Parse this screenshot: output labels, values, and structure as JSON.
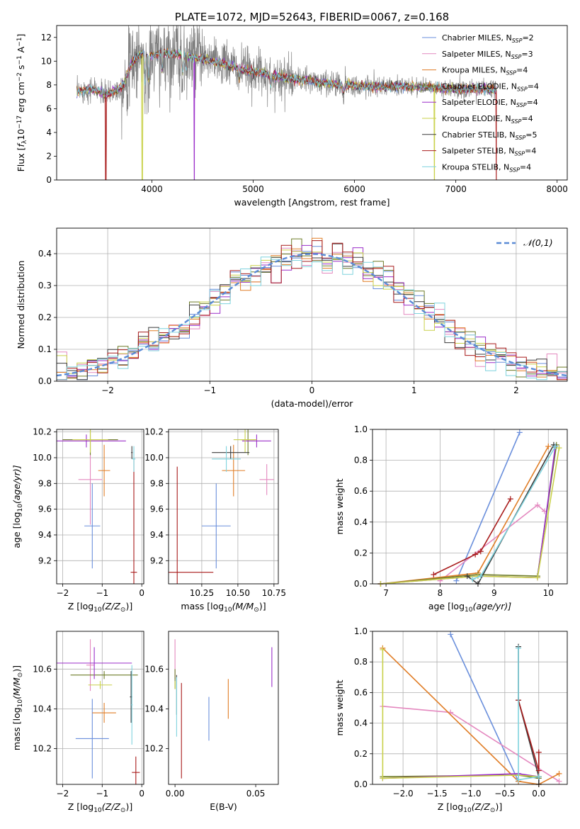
{
  "colors": {
    "Chabrier MILES": "#6a8fdc",
    "Salpeter MILES": "#e488bf",
    "Kroupa MILES": "#e07d26",
    "Chabrier ELODIE": "#6e7c28",
    "Salpeter ELODIE": "#9b2fc9",
    "Kroupa ELODIE": "#c9d14a",
    "Chabrier STELIB": "#3b3b3b",
    "Salpeter STELIB": "#a81b1b",
    "Kroupa STELIB": "#7fd3de",
    "data": "#7f7f7f",
    "gauss": "#5b8bd6"
  },
  "chart_data": [
    {
      "id": "spectrum",
      "type": "line",
      "title": "PLATE=1072, MJD=52643, FIBERID=0067, z=0.168",
      "xlabel": "wavelength [Angstrom, rest frame]",
      "ylabel_parts": [
        "Flux [",
        "f",
        "λ",
        "10",
        "−17",
        " erg cm",
        "−2",
        " s",
        "−1",
        " A",
        "−1",
        "]"
      ],
      "xlim": [
        3060,
        8100
      ],
      "ylim": [
        0,
        13
      ],
      "xticks": [
        4000,
        5000,
        6000,
        7000,
        8000
      ],
      "yticks": [
        0,
        2,
        4,
        6,
        8,
        10,
        12
      ],
      "legend_position": "top-right",
      "legend": [
        {
          "model": "Chabrier MILES",
          "n": 2
        },
        {
          "model": "Salpeter MILES",
          "n": 3
        },
        {
          "model": "Kroupa MILES",
          "n": 4
        },
        {
          "model": "Chabrier ELODIE",
          "n": 4
        },
        {
          "model": "Salpeter ELODIE",
          "n": 4
        },
        {
          "model": "Kroupa ELODIE",
          "n": 4
        },
        {
          "model": "Chabrier STELIB",
          "n": 5
        },
        {
          "model": "Salpeter STELIB",
          "n": 4
        },
        {
          "model": "Kroupa STELIB",
          "n": 4
        }
      ],
      "legend_n_text": {
        "prefix": "N",
        "sub": "SSP",
        "eq": "="
      },
      "continuum": {
        "x": [
          3260,
          3400,
          3550,
          3700,
          3800,
          3850,
          3900,
          4000,
          4100,
          4300,
          4500,
          4700,
          4900,
          5100,
          5300,
          5500,
          5700,
          5900,
          6100,
          6300,
          6500,
          6700,
          6900,
          7100,
          7300,
          7400
        ],
        "y": [
          7.4,
          7.7,
          7.2,
          7.8,
          9.8,
          10.3,
          10.6,
          10.5,
          10.7,
          10.5,
          10.2,
          9.8,
          9.3,
          9.0,
          8.6,
          8.4,
          8.2,
          8.0,
          7.9,
          7.8,
          7.9,
          7.8,
          7.7,
          7.6,
          7.7,
          7.5
        ]
      },
      "noise_sigma": [
        {
          "x": [
            3260,
            3700
          ],
          "s": 0.5
        },
        {
          "x": [
            3700,
            4500
          ],
          "s": 1.6
        },
        {
          "x": [
            4500,
            5400
          ],
          "s": 0.9
        },
        {
          "x": [
            5400,
            6300
          ],
          "s": 0.5
        },
        {
          "x": [
            6300,
            7000
          ],
          "s": 0.35
        },
        {
          "x": [
            7000,
            7400
          ],
          "s": 0.45
        }
      ],
      "absorption_lines": [
        {
          "x": 3934,
          "depth": 3.5
        },
        {
          "x": 3969,
          "depth": 3.0
        },
        {
          "x": 4101,
          "depth": 2.2
        },
        {
          "x": 4305,
          "depth": 2.0
        },
        {
          "x": 4341,
          "depth": 1.6
        },
        {
          "x": 4861,
          "depth": 1.2
        },
        {
          "x": 5175,
          "depth": 1.3
        },
        {
          "x": 5893,
          "depth": 1.0
        }
      ],
      "model_drops": [
        {
          "model": "Salpeter STELIB",
          "x": 3545
        },
        {
          "model": "Kroupa ELODIE",
          "x": 3905
        },
        {
          "model": "Salpeter ELODIE",
          "x": 4420
        },
        {
          "model": "Kroupa ELODIE",
          "x": 6790
        },
        {
          "model": "Salpeter STELIB",
          "x": 7400
        }
      ]
    },
    {
      "id": "residuals",
      "type": "histogram",
      "xlabel": "(data-model)/error",
      "ylabel": "Normed distribution",
      "xlim": [
        -2.5,
        2.5
      ],
      "ylim": [
        0,
        0.48
      ],
      "xticks": [
        -2,
        -1,
        0,
        1,
        2
      ],
      "yticks": [
        0.0,
        0.1,
        0.2,
        0.3,
        0.4
      ],
      "legend": "𝒩(0,1)",
      "legend_position": "top-right",
      "bin_width": 0.1,
      "bin_start": -2.5
    },
    {
      "id": "age_vs_Z",
      "type": "errorbar",
      "xlabel_parts": [
        "Z [log",
        "10",
        "(Z/Z",
        "⊙",
        ")]"
      ],
      "ylabel_parts": [
        "age  [log",
        "10",
        "(age/yr)]"
      ],
      "xlim": [
        -2.15,
        0.05
      ],
      "ylim": [
        9.02,
        10.22
      ],
      "xticks": [
        -2,
        -1,
        0
      ],
      "yticks": [
        9.2,
        9.4,
        9.6,
        9.8,
        10.0,
        10.2
      ],
      "points": [
        {
          "model": "Chabrier MILES",
          "x": -1.25,
          "xerr": 0.2,
          "y": 9.47,
          "yerr": 0.33
        },
        {
          "model": "Salpeter MILES",
          "x": -1.3,
          "xerr": 0.3,
          "y": 9.83,
          "yerr": 0.35
        },
        {
          "model": "Kroupa MILES",
          "x": -0.95,
          "xerr": 0.15,
          "y": 9.9,
          "yerr": 0.2
        },
        {
          "model": "Chabrier ELODIE",
          "x": -1.3,
          "xerr": 0.7,
          "y": 10.14,
          "yerr": 0.12
        },
        {
          "model": "Salpeter ELODIE",
          "x": -1.4,
          "xerr": 1.0,
          "y": 10.13,
          "yerr": 0.05
        },
        {
          "model": "Kroupa ELODIE",
          "x": -1.3,
          "xerr": 0.45,
          "y": 10.14,
          "yerr": 0.1
        },
        {
          "model": "Chabrier STELIB",
          "x": -0.25,
          "xerr": 0.02,
          "y": 10.04,
          "yerr": 0.05
        },
        {
          "model": "Salpeter STELIB",
          "x": -0.2,
          "xerr": 0.08,
          "y": 9.11,
          "yerr": 0.88
        },
        {
          "model": "Kroupa STELIB",
          "x": -0.2,
          "xerr": 0.04,
          "y": 9.99,
          "yerr": 0.1
        }
      ]
    },
    {
      "id": "age_vs_mass",
      "type": "errorbar",
      "xlabel_parts": [
        "mass [log",
        "10",
        "(M/M",
        "⊙",
        ")]"
      ],
      "ylabel": "",
      "xlim": [
        10.02,
        10.78
      ],
      "ylim": [
        9.02,
        10.22
      ],
      "xticks": [
        10.25,
        10.5,
        10.75
      ],
      "xtick_labels": [
        "10.25",
        "10.50",
        "10.75"
      ],
      "yticks": [
        9.2,
        9.4,
        9.6,
        9.8,
        10.0,
        10.2
      ],
      "points": [
        {
          "model": "Chabrier MILES",
          "x": 10.35,
          "xerr": 0.1,
          "y": 9.47,
          "yerr": 0.33
        },
        {
          "model": "Salpeter MILES",
          "x": 10.7,
          "xerr": 0.05,
          "y": 9.83,
          "yerr": 0.12
        },
        {
          "model": "Kroupa MILES",
          "x": 10.47,
          "xerr": 0.08,
          "y": 9.9,
          "yerr": 0.2
        },
        {
          "model": "Chabrier ELODIE",
          "x": 10.57,
          "xerr": 0.05,
          "y": 10.14,
          "yerr": 0.12
        },
        {
          "model": "Salpeter ELODIE",
          "x": 10.63,
          "xerr": 0.1,
          "y": 10.13,
          "yerr": 0.05
        },
        {
          "model": "Kroupa ELODIE",
          "x": 10.55,
          "xerr": 0.08,
          "y": 10.14,
          "yerr": 0.1
        },
        {
          "model": "Chabrier STELIB",
          "x": 10.45,
          "xerr": 0.13,
          "y": 10.04,
          "yerr": 0.05
        },
        {
          "model": "Salpeter STELIB",
          "x": 10.08,
          "xerr": 0.25,
          "y": 9.11,
          "yerr": 0.82
        },
        {
          "model": "Kroupa STELIB",
          "x": 10.42,
          "xerr": 0.1,
          "y": 9.99,
          "yerr": 0.1
        }
      ]
    },
    {
      "id": "mw_vs_age",
      "type": "line",
      "xlabel_parts": [
        "age  [log",
        "10",
        "(age/yr)]"
      ],
      "ylabel": "mass weight",
      "xlim": [
        6.75,
        10.35
      ],
      "ylim": [
        0,
        1.0
      ],
      "xticks": [
        7,
        8,
        9,
        10
      ],
      "yticks": [
        0.0,
        0.2,
        0.4,
        0.6,
        0.8,
        1.0
      ],
      "series": [
        {
          "model": "Chabrier MILES",
          "x": [
            8.3,
            9.47
          ],
          "y": [
            0.02,
            0.98
          ]
        },
        {
          "model": "Salpeter MILES",
          "x": [
            8.0,
            9.8,
            9.93
          ],
          "y": [
            0.02,
            0.51,
            0.47
          ]
        },
        {
          "model": "Kroupa MILES",
          "x": [
            6.9,
            8.7,
            10.0
          ],
          "y": [
            0.0,
            0.07,
            0.89
          ]
        },
        {
          "model": "Chabrier ELODIE",
          "x": [
            6.9,
            8.7,
            9.8,
            10.15
          ],
          "y": [
            0.0,
            0.06,
            0.05,
            0.9
          ]
        },
        {
          "model": "Salpeter ELODIE",
          "x": [
            6.9,
            8.7,
            9.8,
            10.13
          ],
          "y": [
            0.0,
            0.05,
            0.04,
            0.89
          ]
        },
        {
          "model": "Kroupa ELODIE",
          "x": [
            6.9,
            8.7,
            9.8,
            10.2
          ],
          "y": [
            0.0,
            0.05,
            0.04,
            0.88
          ]
        },
        {
          "model": "Chabrier STELIB",
          "x": [
            8.5,
            8.7,
            10.1
          ],
          "y": [
            0.05,
            0.0,
            0.9
          ]
        },
        {
          "model": "Salpeter STELIB",
          "x": [
            7.88,
            8.65,
            8.75,
            9.3
          ],
          "y": [
            0.06,
            0.19,
            0.21,
            0.55
          ]
        },
        {
          "model": "Kroupa STELIB",
          "x": [
            8.6,
            8.75,
            10.13
          ],
          "y": [
            0.03,
            0.05,
            0.89
          ]
        }
      ]
    },
    {
      "id": "mass_vs_Z",
      "type": "errorbar",
      "xlabel_parts": [
        "Z [log",
        "10",
        "(Z/Z",
        "⊙",
        ")]"
      ],
      "ylabel_parts": [
        "mass [log",
        "10",
        "(M/M",
        "⊙",
        ")]"
      ],
      "xlim": [
        -2.15,
        0.05
      ],
      "ylim": [
        10.02,
        10.79
      ],
      "xticks": [
        -2,
        -1,
        0
      ],
      "yticks": [
        10.2,
        10.4,
        10.6
      ],
      "points": [
        {
          "model": "Chabrier MILES",
          "x": -1.25,
          "xerr": 0.42,
          "y": 10.25,
          "yerr": 0.2
        },
        {
          "model": "Salpeter MILES",
          "x": -1.3,
          "xerr": 0.1,
          "y": 10.62,
          "yerr": 0.13
        },
        {
          "model": "Kroupa MILES",
          "x": -0.95,
          "xerr": 0.3,
          "y": 10.38,
          "yerr": 0.05
        },
        {
          "model": "Chabrier ELODIE",
          "x": -0.95,
          "xerr": 0.85,
          "y": 10.57,
          "yerr": 0.02
        },
        {
          "model": "Salpeter ELODIE",
          "x": -1.2,
          "xerr": 0.95,
          "y": 10.63,
          "yerr": 0.08
        },
        {
          "model": "Kroupa ELODIE",
          "x": -1.05,
          "xerr": 0.3,
          "y": 10.52,
          "yerr": 0.02
        },
        {
          "model": "Chabrier STELIB",
          "x": -0.27,
          "xerr": 0.03,
          "y": 10.46,
          "yerr": 0.13
        },
        {
          "model": "Salpeter STELIB",
          "x": -0.15,
          "xerr": 0.1,
          "y": 10.08,
          "yerr": 0.08
        },
        {
          "model": "Kroupa STELIB",
          "x": -0.25,
          "xerr": 0.02,
          "y": 10.42,
          "yerr": 0.2
        }
      ]
    },
    {
      "id": "mass_vs_ebv",
      "type": "errorbar",
      "xlabel": "E(B-V)",
      "ylabel": "",
      "xlim": [
        -0.004,
        0.064
      ],
      "ylim": [
        10.02,
        10.79
      ],
      "xticks": [
        0.0,
        0.05
      ],
      "xtick_labels": [
        "0.00",
        "0.05"
      ],
      "yticks": [
        10.2,
        10.4,
        10.6
      ],
      "points": [
        {
          "model": "Chabrier MILES",
          "x": 0.021,
          "xerr": 0,
          "y": 10.35,
          "yerr": 0.11
        },
        {
          "model": "Salpeter MILES",
          "x": 0.0,
          "xerr": 0,
          "y": 10.65,
          "yerr": 0.1
        },
        {
          "model": "Kroupa MILES",
          "x": 0.033,
          "xerr": 0,
          "y": 10.45,
          "yerr": 0.1
        },
        {
          "model": "Chabrier ELODIE",
          "x": 0.0,
          "xerr": 0,
          "y": 10.55,
          "yerr": 0.05
        },
        {
          "model": "Salpeter ELODIE",
          "x": 0.06,
          "xerr": 0,
          "y": 10.61,
          "yerr": 0.1
        },
        {
          "model": "Kroupa ELODIE",
          "x": 0.0,
          "xerr": 0,
          "y": 10.52,
          "yerr": 0.02
        },
        {
          "model": "Chabrier STELIB",
          "x": 0.001,
          "xerr": 0,
          "y": 10.47,
          "yerr": 0.1
        },
        {
          "model": "Salpeter STELIB",
          "x": 0.004,
          "xerr": 0,
          "y": 10.29,
          "yerr": 0.24
        },
        {
          "model": "Kroupa STELIB",
          "x": 0.001,
          "xerr": 0,
          "y": 10.41,
          "yerr": 0.15
        }
      ]
    },
    {
      "id": "mw_vs_Z",
      "type": "line",
      "xlabel_parts": [
        "Z [log",
        "10",
        "(Z/Z",
        "⊙",
        ")]"
      ],
      "ylabel": "mass weight",
      "xlim": [
        -2.45,
        0.42
      ],
      "ylim": [
        0,
        1.0
      ],
      "xticks": [
        -2.0,
        -1.5,
        -1.0,
        -0.5,
        0.0
      ],
      "xtick_labels": [
        "−2.0",
        "−1.5",
        "−1.0",
        "−0.5",
        "0.0"
      ],
      "yticks": [
        0.0,
        0.2,
        0.4,
        0.6,
        0.8,
        1.0
      ],
      "series": [
        {
          "model": "Chabrier MILES",
          "x": [
            -1.3,
            -0.3
          ],
          "y": [
            0.98,
            0.02
          ]
        },
        {
          "model": "Salpeter MILES",
          "x": [
            -2.3,
            -1.3,
            0.3
          ],
          "y": [
            0.51,
            0.47,
            0.02
          ]
        },
        {
          "model": "Kroupa MILES",
          "x": [
            -2.3,
            -0.3,
            0.0,
            0.3
          ],
          "y": [
            0.89,
            0.02,
            0.0,
            0.07
          ]
        },
        {
          "model": "Chabrier ELODIE",
          "x": [
            -2.3,
            -0.3,
            0.0
          ],
          "y": [
            0.05,
            0.06,
            0.04
          ]
        },
        {
          "model": "Salpeter ELODIE",
          "x": [
            -2.3,
            -0.3,
            0.0
          ],
          "y": [
            0.04,
            0.07,
            0.05
          ]
        },
        {
          "model": "Kroupa ELODIE",
          "x": [
            -2.3,
            -2.3,
            -0.3,
            0.0
          ],
          "y": [
            0.88,
            0.04,
            0.06,
            0.05
          ]
        },
        {
          "model": "Chabrier STELIB",
          "x": [
            -0.3,
            -0.3,
            0.0,
            0.0
          ],
          "y": [
            0.9,
            0.55,
            0.05,
            0.0
          ]
        },
        {
          "model": "Salpeter STELIB",
          "x": [
            -0.3,
            0.0,
            0.0
          ],
          "y": [
            0.55,
            0.09,
            0.21
          ]
        },
        {
          "model": "Kroupa STELIB",
          "x": [
            -0.3,
            -0.3,
            0.0
          ],
          "y": [
            0.89,
            0.03,
            0.05
          ]
        }
      ]
    }
  ]
}
